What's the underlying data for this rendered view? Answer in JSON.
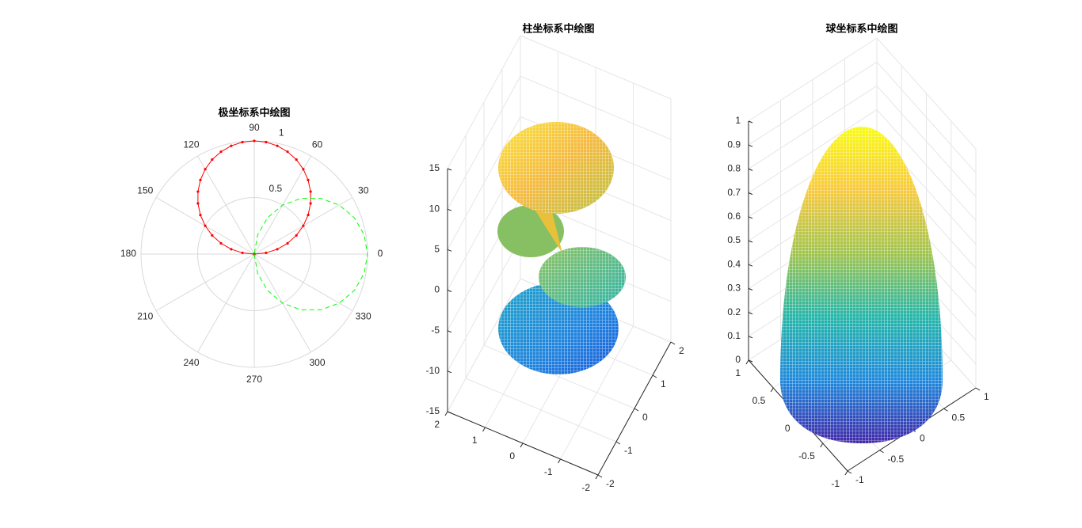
{
  "chart_data": [
    {
      "type": "polar",
      "title": "极坐标系中绘图",
      "rlim": [
        0,
        1
      ],
      "rticks": [
        0.5,
        1
      ],
      "thetaticks": [
        0,
        30,
        60,
        90,
        120,
        150,
        180,
        210,
        240,
        270,
        300,
        330
      ],
      "grid": true,
      "series": [
        {
          "color": "#ff0000",
          "linestyle": "-",
          "marker": ".",
          "theta": [
            0,
            6,
            12,
            18,
            24,
            30,
            36,
            42,
            48,
            54,
            60,
            66,
            72,
            78,
            84,
            90,
            96,
            102,
            108,
            114,
            120,
            126,
            132,
            138,
            144,
            150,
            156,
            162,
            168,
            174,
            180
          ],
          "r": [
            0,
            0.105,
            0.208,
            0.309,
            0.407,
            0.5,
            0.588,
            0.669,
            0.743,
            0.809,
            0.866,
            0.914,
            0.951,
            0.978,
            0.995,
            1,
            0.995,
            0.978,
            0.951,
            0.914,
            0.866,
            0.809,
            0.743,
            0.669,
            0.588,
            0.5,
            0.407,
            0.309,
            0.208,
            0.105,
            0
          ]
        },
        {
          "color": "#00ff00",
          "linestyle": "--",
          "marker": "none",
          "theta": [
            -90,
            -80,
            -70,
            -60,
            -50,
            -40,
            -30,
            -20,
            -10,
            0,
            10,
            20,
            30,
            40,
            50,
            60,
            70,
            80,
            90
          ],
          "r": [
            0,
            0.174,
            0.342,
            0.5,
            0.643,
            0.766,
            0.866,
            0.94,
            0.985,
            1,
            0.985,
            0.94,
            0.866,
            0.766,
            0.643,
            0.5,
            0.342,
            0.174,
            0
          ]
        }
      ]
    },
    {
      "type": "surface",
      "title": "柱坐标系中绘图",
      "xlim": [
        -2,
        2
      ],
      "ylim": [
        -2,
        2
      ],
      "zlim": [
        -15,
        15
      ],
      "xticks": [
        -2,
        -1,
        0,
        1,
        2
      ],
      "yticks": [
        -2,
        -1,
        0,
        1,
        2
      ],
      "zticks": [
        -15,
        -10,
        -5,
        0,
        5,
        10,
        15
      ],
      "grid": true
    },
    {
      "type": "surface",
      "title": "球坐标系中绘图",
      "xlim": [
        -1,
        1
      ],
      "ylim": [
        -1,
        1
      ],
      "zlim": [
        0,
        1
      ],
      "xticks": [
        -1,
        -0.5,
        0,
        0.5,
        1
      ],
      "yticks": [
        -1,
        -0.5,
        0,
        0.5,
        1
      ],
      "zticks": [
        0,
        0.1,
        0.2,
        0.3,
        0.4,
        0.5,
        0.6,
        0.7,
        0.8,
        0.9,
        1
      ],
      "grid": true
    }
  ]
}
